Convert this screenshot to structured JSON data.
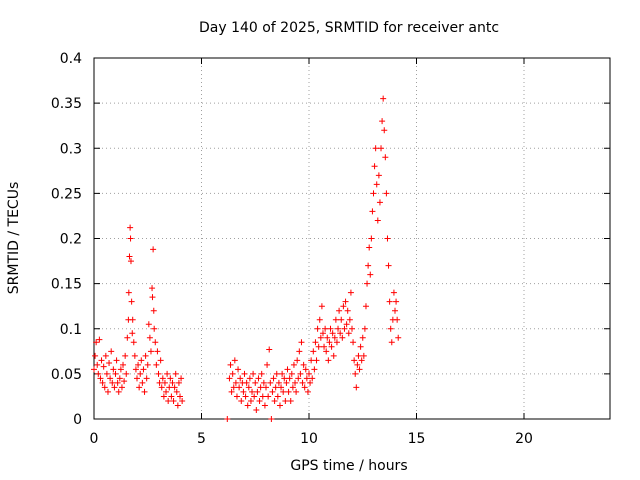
{
  "chart_data": {
    "type": "scatter",
    "title": "Day 140 of 2025, SRMTID for receiver antc",
    "xlabel": "GPS time / hours",
    "ylabel": "SRMTID / TECUs",
    "xlim": [
      0,
      24
    ],
    "ylim": [
      0,
      0.4
    ],
    "xticks": [
      0,
      5,
      10,
      15,
      20
    ],
    "xtick_labels": [
      "0",
      "5",
      "10",
      "15",
      "20"
    ],
    "yticks": [
      0,
      0.05,
      0.1,
      0.15,
      0.2,
      0.25,
      0.3,
      0.35,
      0.4
    ],
    "ytick_labels": [
      "0",
      "0.05",
      "0.1",
      "0.15",
      "0.2",
      "0.25",
      "0.3",
      "0.35",
      "0.4"
    ],
    "grid": true,
    "marker": "+",
    "color": "#ff0000",
    "series": [
      {
        "name": "SRMTID",
        "points": [
          [
            0.0,
            0.055
          ],
          [
            0.05,
            0.07
          ],
          [
            0.1,
            0.085
          ],
          [
            0.15,
            0.06
          ],
          [
            0.2,
            0.05
          ],
          [
            0.25,
            0.088
          ],
          [
            0.3,
            0.045
          ],
          [
            0.35,
            0.065
          ],
          [
            0.4,
            0.04
          ],
          [
            0.45,
            0.058
          ],
          [
            0.5,
            0.035
          ],
          [
            0.55,
            0.07
          ],
          [
            0.6,
            0.05
          ],
          [
            0.65,
            0.03
          ],
          [
            0.7,
            0.062
          ],
          [
            0.75,
            0.045
          ],
          [
            0.8,
            0.075
          ],
          [
            0.85,
            0.04
          ],
          [
            0.9,
            0.055
          ],
          [
            0.95,
            0.035
          ],
          [
            1.0,
            0.05
          ],
          [
            1.05,
            0.065
          ],
          [
            1.1,
            0.04
          ],
          [
            1.15,
            0.03
          ],
          [
            1.2,
            0.045
          ],
          [
            1.25,
            0.055
          ],
          [
            1.3,
            0.035
          ],
          [
            1.35,
            0.06
          ],
          [
            1.4,
            0.042
          ],
          [
            1.45,
            0.07
          ],
          [
            1.5,
            0.05
          ],
          [
            1.55,
            0.09
          ],
          [
            1.6,
            0.11
          ],
          [
            1.62,
            0.14
          ],
          [
            1.65,
            0.18
          ],
          [
            1.68,
            0.212
          ],
          [
            1.7,
            0.2
          ],
          [
            1.72,
            0.175
          ],
          [
            1.75,
            0.13
          ],
          [
            1.78,
            0.095
          ],
          [
            1.8,
            0.11
          ],
          [
            1.85,
            0.085
          ],
          [
            1.9,
            0.07
          ],
          [
            1.95,
            0.055
          ],
          [
            2.0,
            0.045
          ],
          [
            2.05,
            0.06
          ],
          [
            2.1,
            0.035
          ],
          [
            2.15,
            0.05
          ],
          [
            2.2,
            0.065
          ],
          [
            2.25,
            0.04
          ],
          [
            2.3,
            0.055
          ],
          [
            2.35,
            0.03
          ],
          [
            2.4,
            0.07
          ],
          [
            2.45,
            0.045
          ],
          [
            2.5,
            0.06
          ],
          [
            2.55,
            0.105
          ],
          [
            2.6,
            0.09
          ],
          [
            2.65,
            0.075
          ],
          [
            2.7,
            0.145
          ],
          [
            2.72,
            0.135
          ],
          [
            2.75,
            0.188
          ],
          [
            2.78,
            0.12
          ],
          [
            2.8,
            0.1
          ],
          [
            2.85,
            0.085
          ],
          [
            2.9,
            0.06
          ],
          [
            2.95,
            0.075
          ],
          [
            3.0,
            0.05
          ],
          [
            3.05,
            0.04
          ],
          [
            3.1,
            0.065
          ],
          [
            3.15,
            0.035
          ],
          [
            3.2,
            0.045
          ],
          [
            3.25,
            0.025
          ],
          [
            3.3,
            0.04
          ],
          [
            3.35,
            0.03
          ],
          [
            3.4,
            0.05
          ],
          [
            3.45,
            0.02
          ],
          [
            3.5,
            0.035
          ],
          [
            3.55,
            0.045
          ],
          [
            3.6,
            0.025
          ],
          [
            3.65,
            0.04
          ],
          [
            3.7,
            0.02
          ],
          [
            3.75,
            0.035
          ],
          [
            3.8,
            0.05
          ],
          [
            3.85,
            0.03
          ],
          [
            3.9,
            0.015
          ],
          [
            3.95,
            0.04
          ],
          [
            4.0,
            0.025
          ],
          [
            4.05,
            0.045
          ],
          [
            4.1,
            0.02
          ],
          [
            6.2,
            0.0
          ],
          [
            6.3,
            0.045
          ],
          [
            6.35,
            0.06
          ],
          [
            6.4,
            0.03
          ],
          [
            6.45,
            0.05
          ],
          [
            6.5,
            0.035
          ],
          [
            6.55,
            0.065
          ],
          [
            6.6,
            0.04
          ],
          [
            6.65,
            0.025
          ],
          [
            6.7,
            0.055
          ],
          [
            6.75,
            0.035
          ],
          [
            6.8,
            0.045
          ],
          [
            6.85,
            0.02
          ],
          [
            6.9,
            0.04
          ],
          [
            6.95,
            0.03
          ],
          [
            7.0,
            0.05
          ],
          [
            7.05,
            0.025
          ],
          [
            7.1,
            0.04
          ],
          [
            7.15,
            0.015
          ],
          [
            7.2,
            0.035
          ],
          [
            7.25,
            0.045
          ],
          [
            7.3,
            0.02
          ],
          [
            7.35,
            0.03
          ],
          [
            7.4,
            0.05
          ],
          [
            7.45,
            0.025
          ],
          [
            7.5,
            0.04
          ],
          [
            7.55,
            0.01
          ],
          [
            7.6,
            0.03
          ],
          [
            7.65,
            0.045
          ],
          [
            7.7,
            0.02
          ],
          [
            7.75,
            0.035
          ],
          [
            7.8,
            0.05
          ],
          [
            7.85,
            0.025
          ],
          [
            7.9,
            0.04
          ],
          [
            7.95,
            0.015
          ],
          [
            8.0,
            0.035
          ],
          [
            8.05,
            0.06
          ],
          [
            8.1,
            0.025
          ],
          [
            8.15,
            0.077
          ],
          [
            8.2,
            0.04
          ],
          [
            8.25,
            0.0
          ],
          [
            8.3,
            0.03
          ],
          [
            8.35,
            0.045
          ],
          [
            8.4,
            0.02
          ],
          [
            8.45,
            0.035
          ],
          [
            8.5,
            0.05
          ],
          [
            8.55,
            0.025
          ],
          [
            8.6,
            0.04
          ],
          [
            8.65,
            0.015
          ],
          [
            8.7,
            0.035
          ],
          [
            8.75,
            0.05
          ],
          [
            8.8,
            0.03
          ],
          [
            8.85,
            0.045
          ],
          [
            8.9,
            0.02
          ],
          [
            8.95,
            0.04
          ],
          [
            9.0,
            0.055
          ],
          [
            9.05,
            0.03
          ],
          [
            9.1,
            0.045
          ],
          [
            9.15,
            0.02
          ],
          [
            9.2,
            0.05
          ],
          [
            9.25,
            0.035
          ],
          [
            9.3,
            0.06
          ],
          [
            9.35,
            0.04
          ],
          [
            9.4,
            0.03
          ],
          [
            9.45,
            0.065
          ],
          [
            9.5,
            0.045
          ],
          [
            9.55,
            0.075
          ],
          [
            9.6,
            0.05
          ],
          [
            9.65,
            0.085
          ],
          [
            9.7,
            0.04
          ],
          [
            9.75,
            0.06
          ],
          [
            9.8,
            0.035
          ],
          [
            9.85,
            0.055
          ],
          [
            9.9,
            0.045
          ],
          [
            9.95,
            0.03
          ],
          [
            10.0,
            0.05
          ],
          [
            10.05,
            0.04
          ],
          [
            10.1,
            0.065
          ],
          [
            10.15,
            0.045
          ],
          [
            10.2,
            0.075
          ],
          [
            10.25,
            0.055
          ],
          [
            10.3,
            0.085
          ],
          [
            10.35,
            0.065
          ],
          [
            10.4,
            0.1
          ],
          [
            10.45,
            0.08
          ],
          [
            10.5,
            0.11
          ],
          [
            10.55,
            0.09
          ],
          [
            10.6,
            0.125
          ],
          [
            10.65,
            0.095
          ],
          [
            10.7,
            0.08
          ],
          [
            10.75,
            0.1
          ],
          [
            10.8,
            0.075
          ],
          [
            10.85,
            0.09
          ],
          [
            10.9,
            0.065
          ],
          [
            10.95,
            0.085
          ],
          [
            11.0,
            0.1
          ],
          [
            11.05,
            0.08
          ],
          [
            11.1,
            0.095
          ],
          [
            11.15,
            0.07
          ],
          [
            11.2,
            0.09
          ],
          [
            11.25,
            0.11
          ],
          [
            11.3,
            0.085
          ],
          [
            11.35,
            0.1
          ],
          [
            11.4,
            0.12
          ],
          [
            11.45,
            0.095
          ],
          [
            11.5,
            0.11
          ],
          [
            11.55,
            0.09
          ],
          [
            11.6,
            0.125
          ],
          [
            11.65,
            0.1
          ],
          [
            11.7,
            0.13
          ],
          [
            11.75,
            0.105
          ],
          [
            11.8,
            0.12
          ],
          [
            11.85,
            0.095
          ],
          [
            11.9,
            0.11
          ],
          [
            11.95,
            0.14
          ],
          [
            12.0,
            0.1
          ],
          [
            12.05,
            0.085
          ],
          [
            12.1,
            0.065
          ],
          [
            12.15,
            0.05
          ],
          [
            12.2,
            0.035
          ],
          [
            12.25,
            0.06
          ],
          [
            12.3,
            0.07
          ],
          [
            12.35,
            0.055
          ],
          [
            12.4,
            0.08
          ],
          [
            12.45,
            0.065
          ],
          [
            12.5,
            0.09
          ],
          [
            12.55,
            0.07
          ],
          [
            12.6,
            0.1
          ],
          [
            12.65,
            0.125
          ],
          [
            12.7,
            0.15
          ],
          [
            12.75,
            0.17
          ],
          [
            12.8,
            0.19
          ],
          [
            12.85,
            0.16
          ],
          [
            12.9,
            0.2
          ],
          [
            12.95,
            0.23
          ],
          [
            13.0,
            0.25
          ],
          [
            13.05,
            0.28
          ],
          [
            13.1,
            0.3
          ],
          [
            13.15,
            0.26
          ],
          [
            13.2,
            0.22
          ],
          [
            13.25,
            0.27
          ],
          [
            13.3,
            0.24
          ],
          [
            13.35,
            0.3
          ],
          [
            13.4,
            0.33
          ],
          [
            13.45,
            0.355
          ],
          [
            13.5,
            0.32
          ],
          [
            13.55,
            0.29
          ],
          [
            13.6,
            0.25
          ],
          [
            13.65,
            0.2
          ],
          [
            13.7,
            0.17
          ],
          [
            13.75,
            0.13
          ],
          [
            13.8,
            0.1
          ],
          [
            13.85,
            0.085
          ],
          [
            13.9,
            0.11
          ],
          [
            13.95,
            0.14
          ],
          [
            14.0,
            0.12
          ],
          [
            14.05,
            0.13
          ],
          [
            14.1,
            0.11
          ],
          [
            14.15,
            0.09
          ]
        ]
      }
    ]
  }
}
